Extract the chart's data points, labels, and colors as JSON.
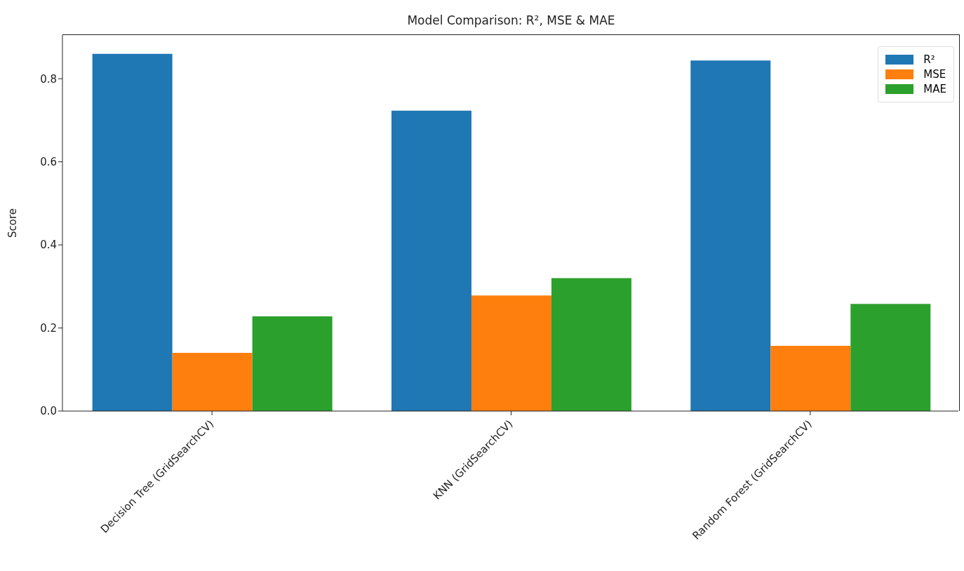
{
  "chart_data": {
    "type": "bar",
    "title": "Model Comparison: R², MSE & MAE",
    "ylabel": "Score",
    "categories": [
      "Decision Tree (GridSearchCV)",
      "KNN (GridSearchCV)",
      "Random Forest (GridSearchCV)"
    ],
    "series": [
      {
        "name": "R²",
        "color": "#1f77b4",
        "values": [
          0.86,
          0.723,
          0.844
        ]
      },
      {
        "name": "MSE",
        "color": "#ff7f0e",
        "values": [
          0.14,
          0.278,
          0.157
        ]
      },
      {
        "name": "MAE",
        "color": "#2ca02c",
        "values": [
          0.228,
          0.32,
          0.258
        ]
      }
    ],
    "ylim": [
      0,
      0.905
    ],
    "yticks": [
      {
        "value": 0,
        "label": "0.0"
      },
      {
        "value": 0.2,
        "label": "0.2"
      },
      {
        "value": 0.4,
        "label": "0.4"
      },
      {
        "value": 0.6,
        "label": "0.6"
      },
      {
        "value": 0.8,
        "label": "0.8"
      }
    ],
    "grid": false,
    "legend": "top right"
  }
}
